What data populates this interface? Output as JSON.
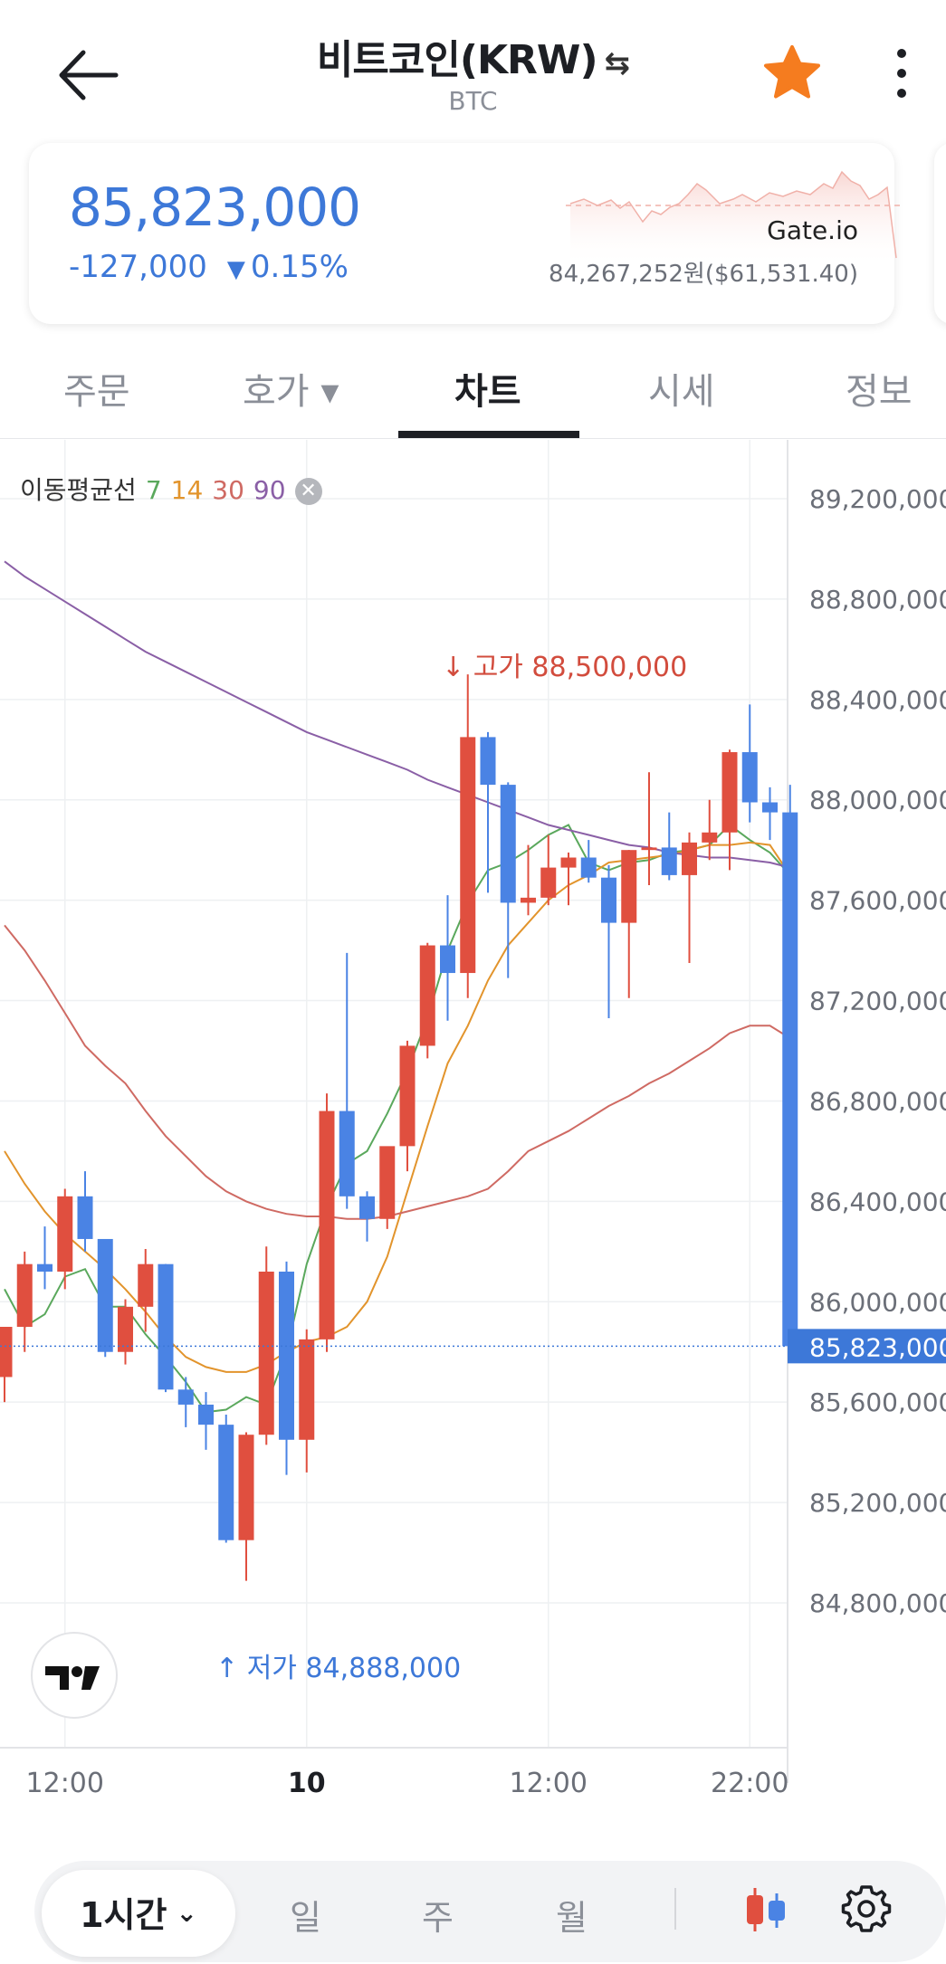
{
  "header": {
    "title": "비트코인(KRW)",
    "swap_glyph": "⇆",
    "subtitle": "BTC",
    "back_icon": "arrow-left-icon",
    "favorite_icon": "star-icon",
    "favorite_color": "#f57c1f",
    "more_icon": "more-vertical-icon"
  },
  "price_card": {
    "price": "85,823,000",
    "change_amount": "-127,000",
    "change_direction_glyph": "▼",
    "change_percent": "0.15%",
    "exchange": "Gate.io",
    "exchange_price": "84,267,252원($61,531.40)",
    "color_down": "#3d78d8"
  },
  "tabs": [
    {
      "label": "주문",
      "active": false
    },
    {
      "label": "호가 ▾",
      "active": false
    },
    {
      "label": "차트",
      "active": true
    },
    {
      "label": "시세",
      "active": false
    },
    {
      "label": "정보",
      "active": false
    }
  ],
  "ma_legend": {
    "label": "이동평균선",
    "periods": [
      {
        "value": "7",
        "color": "#5aa85c"
      },
      {
        "value": "14",
        "color": "#e2942c"
      },
      {
        "value": "30",
        "color": "#cf6a63"
      },
      {
        "value": "90",
        "color": "#8a5fa6"
      }
    ],
    "close_glyph": "✕"
  },
  "annotations": {
    "high": "고가 88,500,000",
    "low": "저가 84,888,000"
  },
  "chart_data": {
    "type": "candlestick",
    "interval": "1시간",
    "last_price": 85823000,
    "last_price_label": "85,823,000",
    "y_ticks": [
      {
        "value": 89200000,
        "label": "89,200,000"
      },
      {
        "value": 88800000,
        "label": "88,800,000"
      },
      {
        "value": 88400000,
        "label": "88,400,000"
      },
      {
        "value": 88000000,
        "label": "88,000,000"
      },
      {
        "value": 87600000,
        "label": "87,600,000"
      },
      {
        "value": 87200000,
        "label": "87,200,000"
      },
      {
        "value": 86800000,
        "label": "86,800,000"
      },
      {
        "value": 86400000,
        "label": "86,400,000"
      },
      {
        "value": 86000000,
        "label": "86,000,000"
      },
      {
        "value": 85600000,
        "label": "85,600,000"
      },
      {
        "value": 85200000,
        "label": "85,200,000"
      },
      {
        "value": 84800000,
        "label": "84,800,000"
      }
    ],
    "x_ticks": [
      {
        "index": 3,
        "label": "12:00",
        "bold": false
      },
      {
        "index": 15,
        "label": "10",
        "bold": true
      },
      {
        "index": 27,
        "label": "12:00",
        "bold": false
      },
      {
        "index": 37,
        "label": "22:00",
        "bold": false
      }
    ],
    "up_color": "#e04f3f",
    "down_color": "#4a83e4",
    "candles": [
      {
        "o": 85700000,
        "h": 85900000,
        "l": 85600000,
        "c": 85900000
      },
      {
        "o": 85900000,
        "h": 86200000,
        "l": 85800000,
        "c": 86150000
      },
      {
        "o": 86150000,
        "h": 86300000,
        "l": 86050000,
        "c": 86120000
      },
      {
        "o": 86120000,
        "h": 86450000,
        "l": 86050000,
        "c": 86420000
      },
      {
        "o": 86420000,
        "h": 86520000,
        "l": 86200000,
        "c": 86250000
      },
      {
        "o": 86250000,
        "h": 86250000,
        "l": 85780000,
        "c": 85800000
      },
      {
        "o": 85800000,
        "h": 86010000,
        "l": 85750000,
        "c": 85980000
      },
      {
        "o": 85980000,
        "h": 86210000,
        "l": 85880000,
        "c": 86150000
      },
      {
        "o": 86150000,
        "h": 86150000,
        "l": 85640000,
        "c": 85650000
      },
      {
        "o": 85650000,
        "h": 85700000,
        "l": 85500000,
        "c": 85590000
      },
      {
        "o": 85590000,
        "h": 85640000,
        "l": 85410000,
        "c": 85510000
      },
      {
        "o": 85510000,
        "h": 85550000,
        "l": 85040000,
        "c": 85050000
      },
      {
        "o": 85050000,
        "h": 85480000,
        "l": 84888000,
        "c": 85470000
      },
      {
        "o": 85470000,
        "h": 86220000,
        "l": 85430000,
        "c": 86120000
      },
      {
        "o": 86120000,
        "h": 86160000,
        "l": 85310000,
        "c": 85450000
      },
      {
        "o": 85450000,
        "h": 85890000,
        "l": 85320000,
        "c": 85850000
      },
      {
        "o": 85850000,
        "h": 86830000,
        "l": 85800000,
        "c": 86760000
      },
      {
        "o": 86760000,
        "h": 87390000,
        "l": 86370000,
        "c": 86420000
      },
      {
        "o": 86420000,
        "h": 86440000,
        "l": 86240000,
        "c": 86330000
      },
      {
        "o": 86330000,
        "h": 86590000,
        "l": 86290000,
        "c": 86620000
      },
      {
        "o": 86620000,
        "h": 87040000,
        "l": 86520000,
        "c": 87020000
      },
      {
        "o": 87020000,
        "h": 87430000,
        "l": 86970000,
        "c": 87420000
      },
      {
        "o": 87420000,
        "h": 87620000,
        "l": 87120000,
        "c": 87310000
      },
      {
        "o": 87310000,
        "h": 88500000,
        "l": 87210000,
        "c": 88250000
      },
      {
        "o": 88250000,
        "h": 88270000,
        "l": 87630000,
        "c": 88060000
      },
      {
        "o": 88060000,
        "h": 88070000,
        "l": 87290000,
        "c": 87590000
      },
      {
        "o": 87590000,
        "h": 87820000,
        "l": 87540000,
        "c": 87610000
      },
      {
        "o": 87610000,
        "h": 87860000,
        "l": 87580000,
        "c": 87730000
      },
      {
        "o": 87730000,
        "h": 87790000,
        "l": 87580000,
        "c": 87770000
      },
      {
        "o": 87770000,
        "h": 87840000,
        "l": 87670000,
        "c": 87690000
      },
      {
        "o": 87690000,
        "h": 87740000,
        "l": 87130000,
        "c": 87510000
      },
      {
        "o": 87510000,
        "h": 87800000,
        "l": 87210000,
        "c": 87800000
      },
      {
        "o": 87800000,
        "h": 88110000,
        "l": 87660000,
        "c": 87810000
      },
      {
        "o": 87810000,
        "h": 87950000,
        "l": 87680000,
        "c": 87700000
      },
      {
        "o": 87700000,
        "h": 87870000,
        "l": 87350000,
        "c": 87830000
      },
      {
        "o": 87830000,
        "h": 88000000,
        "l": 87760000,
        "c": 87870000
      },
      {
        "o": 87870000,
        "h": 88200000,
        "l": 87720000,
        "c": 88190000
      },
      {
        "o": 88190000,
        "h": 88380000,
        "l": 87910000,
        "c": 87990000
      },
      {
        "o": 87990000,
        "h": 88050000,
        "l": 87840000,
        "c": 87950000
      },
      {
        "o": 87950000,
        "h": 88060000,
        "l": 85823000,
        "c": 85823000
      }
    ],
    "ma": [
      {
        "period": 7,
        "color": "#5aa85c",
        "values": [
          86050000,
          85900000,
          85950000,
          86100000,
          86130000,
          85980000,
          85980000,
          85870000,
          85780000,
          85680000,
          85560000,
          85570000,
          85620000,
          85590000,
          85800000,
          86150000,
          86380000,
          86550000,
          86600000,
          86750000,
          86920000,
          87130000,
          87400000,
          87590000,
          87720000,
          87750000,
          87800000,
          87860000,
          87900000,
          87750000,
          87720000,
          87750000,
          87760000,
          87790000,
          87800000,
          87820000,
          87900000,
          87840000,
          87790000,
          87700000
        ]
      },
      {
        "period": 14,
        "color": "#e2942c",
        "values": [
          86600000,
          86470000,
          86360000,
          86270000,
          86200000,
          86130000,
          86050000,
          85960000,
          85860000,
          85780000,
          85740000,
          85720000,
          85720000,
          85750000,
          85800000,
          85840000,
          85860000,
          85900000,
          86000000,
          86180000,
          86440000,
          86700000,
          86950000,
          87100000,
          87280000,
          87420000,
          87510000,
          87600000,
          87660000,
          87700000,
          87750000,
          87760000,
          87770000,
          87780000,
          87800000,
          87820000,
          87820000,
          87830000,
          87820000,
          87700000
        ]
      },
      {
        "period": 30,
        "color": "#cf6a63",
        "values": [
          87500000,
          87400000,
          87280000,
          87150000,
          87020000,
          86940000,
          86870000,
          86760000,
          86660000,
          86580000,
          86500000,
          86440000,
          86400000,
          86370000,
          86350000,
          86340000,
          86340000,
          86330000,
          86330000,
          86340000,
          86360000,
          86380000,
          86400000,
          86420000,
          86450000,
          86520000,
          86600000,
          86640000,
          86680000,
          86730000,
          86780000,
          86820000,
          86870000,
          86910000,
          86960000,
          87010000,
          87070000,
          87100000,
          87100000,
          87050000
        ]
      },
      {
        "period": 90,
        "color": "#8a5fa6",
        "values": [
          88950000,
          88890000,
          88840000,
          88790000,
          88740000,
          88690000,
          88640000,
          88590000,
          88550000,
          88510000,
          88470000,
          88430000,
          88390000,
          88350000,
          88310000,
          88270000,
          88240000,
          88210000,
          88180000,
          88150000,
          88120000,
          88080000,
          88050000,
          88020000,
          87990000,
          87960000,
          87930000,
          87900000,
          87880000,
          87860000,
          87840000,
          87820000,
          87810000,
          87790000,
          87780000,
          87770000,
          87770000,
          87760000,
          87750000,
          87730000
        ]
      }
    ]
  },
  "bottom_bar": {
    "interval_label": "1시간",
    "interval_chevron": "⌄",
    "periods": [
      "일",
      "주",
      "월"
    ],
    "chart_type_icon": "candlestick-icon",
    "settings_icon": "settings-gear-icon"
  },
  "branding": {
    "tradingview_icon": "tradingview-logo-icon"
  }
}
